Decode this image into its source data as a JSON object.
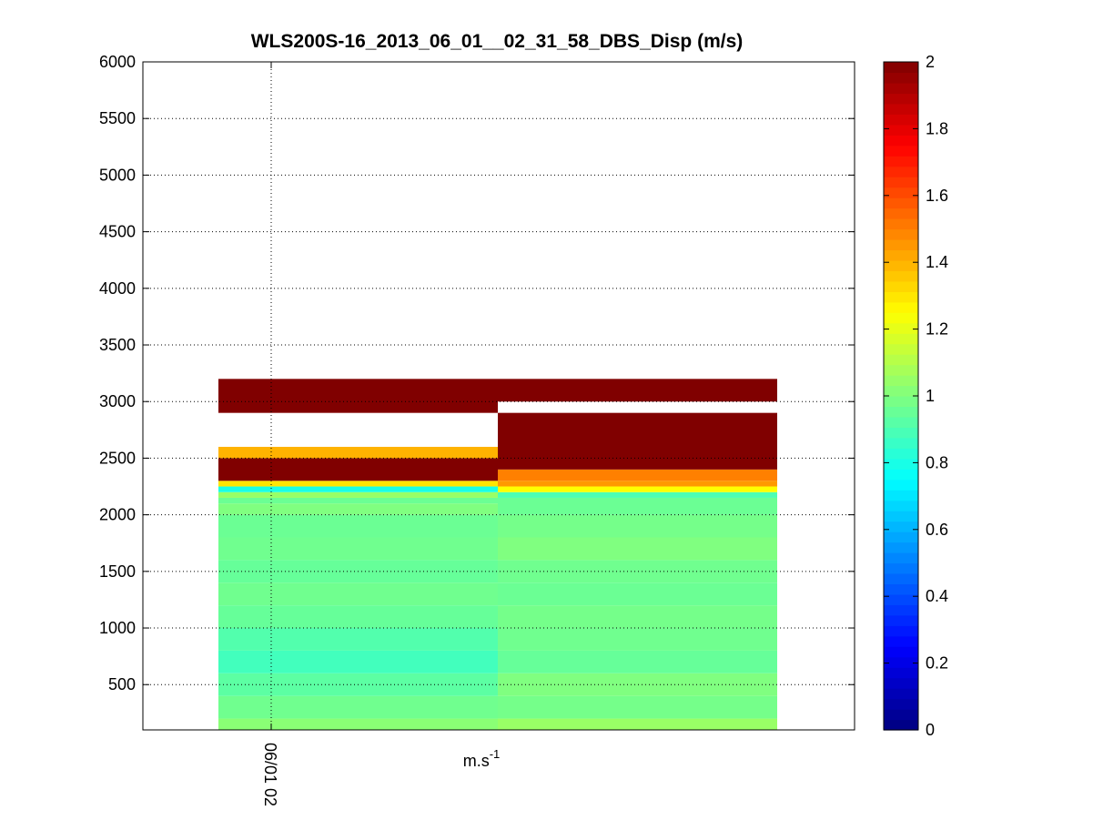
{
  "chart_data": {
    "type": "heatmap",
    "title": "WLS200S-16_2013_06_01__02_31_58_DBS_Disp (m/s)",
    "xlabel": "m.s-1",
    "xlabel_base": "m.s",
    "xlabel_exp": "-1",
    "x_tick_labels": [
      "06/01 02"
    ],
    "ylim": [
      100,
      6000
    ],
    "y_ticks": [
      500,
      1000,
      1500,
      2000,
      2500,
      3000,
      3500,
      4000,
      4500,
      5000,
      5500,
      6000
    ],
    "grid": true,
    "colormap": "jet",
    "color_range": [
      0,
      2
    ],
    "colorbar_ticks": [
      0,
      0.2,
      0.4,
      0.6,
      0.8,
      1,
      1.2,
      1.4,
      1.6,
      1.8,
      2
    ],
    "colorbar_tick_labels": [
      "0",
      "0.2",
      "0.4",
      "0.6",
      "0.8",
      "1",
      "1.2",
      "1.4",
      "1.6",
      "1.8",
      "2"
    ],
    "columns": [
      {
        "cells": [
          {
            "from": 100,
            "to": 200,
            "value": 1.02
          },
          {
            "from": 200,
            "to": 400,
            "value": 0.97
          },
          {
            "from": 400,
            "to": 600,
            "value": 0.93
          },
          {
            "from": 600,
            "to": 800,
            "value": 0.88
          },
          {
            "from": 800,
            "to": 1000,
            "value": 0.91
          },
          {
            "from": 1000,
            "to": 1200,
            "value": 0.95
          },
          {
            "from": 1200,
            "to": 1400,
            "value": 0.97
          },
          {
            "from": 1400,
            "to": 1600,
            "value": 0.95
          },
          {
            "from": 1600,
            "to": 1800,
            "value": 0.97
          },
          {
            "from": 1800,
            "to": 2000,
            "value": 0.96
          },
          {
            "from": 2000,
            "to": 2100,
            "value": 1.0
          },
          {
            "from": 2100,
            "to": 2150,
            "value": 0.96
          },
          {
            "from": 2150,
            "to": 2200,
            "value": 1.05
          },
          {
            "from": 2200,
            "to": 2250,
            "value": 0.8
          },
          {
            "from": 2250,
            "to": 2300,
            "value": 1.3
          },
          {
            "from": 2300,
            "to": 2500,
            "value": 2.0
          },
          {
            "from": 2500,
            "to": 2600,
            "value": 1.4
          },
          {
            "from": 2900,
            "to": 3200,
            "value": 2.0
          }
        ]
      },
      {
        "cells": [
          {
            "from": 100,
            "to": 200,
            "value": 1.05
          },
          {
            "from": 200,
            "to": 400,
            "value": 0.98
          },
          {
            "from": 400,
            "to": 600,
            "value": 1.0
          },
          {
            "from": 600,
            "to": 800,
            "value": 0.95
          },
          {
            "from": 800,
            "to": 1000,
            "value": 0.97
          },
          {
            "from": 1000,
            "to": 1200,
            "value": 0.98
          },
          {
            "from": 1200,
            "to": 1400,
            "value": 0.96
          },
          {
            "from": 1400,
            "to": 1600,
            "value": 0.97
          },
          {
            "from": 1600,
            "to": 1800,
            "value": 1.0
          },
          {
            "from": 1800,
            "to": 2000,
            "value": 0.98
          },
          {
            "from": 2000,
            "to": 2150,
            "value": 0.96
          },
          {
            "from": 2150,
            "to": 2200,
            "value": 0.9
          },
          {
            "from": 2200,
            "to": 2250,
            "value": 1.25
          },
          {
            "from": 2250,
            "to": 2300,
            "value": 1.45
          },
          {
            "from": 2300,
            "to": 2400,
            "value": 1.5
          },
          {
            "from": 2400,
            "to": 2900,
            "value": 2.0
          },
          {
            "from": 3000,
            "to": 3200,
            "value": 2.0
          }
        ]
      }
    ]
  }
}
